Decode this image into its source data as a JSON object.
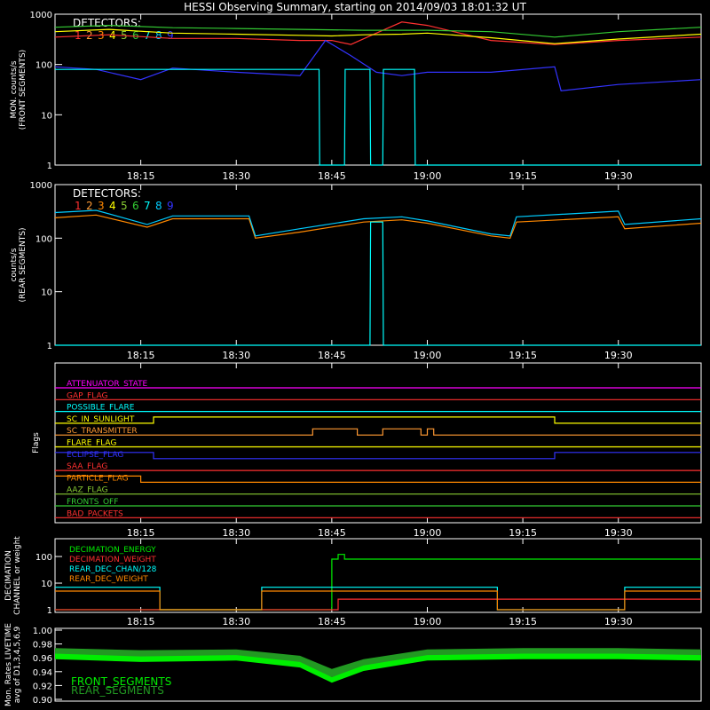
{
  "title": "HESSI Observing Summary, starting on 2014/09/03 18:01:32 UT",
  "time_ticks": [
    "18:15",
    "18:30",
    "18:45",
    "19:00",
    "19:15",
    "19:30"
  ],
  "colors": {
    "d1": "#ff3030",
    "d2": "#ff9933",
    "d3": "#ff8800",
    "d4": "#ffff00",
    "d5": "#88cc33",
    "d6": "#33cc33",
    "d7": "#00ffff",
    "d8": "#00ccff",
    "d9": "#3333ff",
    "magenta": "#ff00ff",
    "green": "#00ee00",
    "darkgreen": "#229922"
  },
  "chart_data": [
    {
      "type": "line",
      "title": "HESSI Observing Summary, starting on 2014/09/03 18:01:32 UT",
      "ylabel": [
        "MON. counts/s",
        "(FRONT SEGMENTS)"
      ],
      "legend_title": "DETECTORS:",
      "legend_labels": [
        "1",
        "2",
        "3",
        "4",
        "5",
        "6",
        "7",
        "8",
        "9"
      ],
      "y_scale": "log",
      "ylim": [
        1,
        1000
      ],
      "ytick_labels": [
        "1",
        "10",
        "100",
        "1000"
      ],
      "xlim": [
        "18:01:32",
        "19:43"
      ],
      "series": [
        {
          "color_key": "d1",
          "x": [
            "18:01:32",
            "18:10",
            "18:20",
            "18:30",
            "18:40",
            "18:45",
            "18:48",
            "18:52",
            "18:56",
            "19:00",
            "19:10",
            "19:20",
            "19:30",
            "19:43"
          ],
          "values": [
            350,
            390,
            330,
            330,
            300,
            300,
            250,
            420,
            700,
            600,
            300,
            250,
            300,
            350
          ]
        },
        {
          "color_key": "d4",
          "x": [
            "18:01:32",
            "18:10",
            "18:20",
            "18:30",
            "18:40",
            "18:45",
            "18:50",
            "18:56",
            "19:00",
            "19:10",
            "19:20",
            "19:30",
            "19:43"
          ],
          "values": [
            450,
            500,
            420,
            400,
            380,
            370,
            390,
            400,
            420,
            340,
            260,
            320,
            400
          ]
        },
        {
          "color_key": "d6",
          "x": [
            "18:01:32",
            "18:10",
            "18:20",
            "18:30",
            "18:40",
            "18:50",
            "19:00",
            "19:10",
            "19:20",
            "19:30",
            "19:43"
          ],
          "values": [
            550,
            600,
            540,
            520,
            500,
            480,
            480,
            450,
            350,
            450,
            550
          ]
        },
        {
          "color_key": "d9",
          "x": [
            "18:01:32",
            "18:08",
            "18:15",
            "18:20",
            "18:30",
            "18:40",
            "18:44",
            "18:48",
            "18:52",
            "18:56",
            "19:00",
            "19:10",
            "19:20",
            "19:21",
            "19:30",
            "19:43"
          ],
          "values": [
            90,
            80,
            50,
            85,
            70,
            60,
            300,
            150,
            70,
            60,
            70,
            70,
            90,
            30,
            40,
            50
          ]
        },
        {
          "color_key": "d7",
          "x": [
            "18:01:32",
            "18:40",
            "18:43",
            "18:43.1",
            "18:47",
            "18:47.1",
            "18:51",
            "18:51.1",
            "18:53",
            "18:53.1",
            "18:58",
            "18:58.1",
            "19:43"
          ],
          "values": [
            80,
            80,
            80,
            1,
            1,
            80,
            80,
            1,
            1,
            80,
            80,
            1,
            1
          ]
        }
      ]
    },
    {
      "type": "line",
      "ylabel": [
        "counts/s",
        "(REAR SEGMENTS)"
      ],
      "legend_title": "DETECTORS:",
      "legend_labels": [
        "1",
        "2",
        "3",
        "4",
        "5",
        "6",
        "7",
        "8",
        "9"
      ],
      "y_scale": "log",
      "ylim": [
        1,
        1000
      ],
      "ytick_labels": [
        "1",
        "10",
        "100",
        "1000"
      ],
      "xlim": [
        "18:01:32",
        "19:43"
      ],
      "series": [
        {
          "color_key": "d3",
          "x": [
            "18:01:32",
            "18:08",
            "18:16",
            "18:20",
            "18:32",
            "18:33",
            "18:40",
            "18:50",
            "18:56",
            "19:00",
            "19:10",
            "19:13",
            "19:14",
            "19:30",
            "19:31",
            "19:43"
          ],
          "values": [
            240,
            270,
            160,
            230,
            230,
            100,
            130,
            200,
            220,
            190,
            110,
            100,
            200,
            250,
            150,
            190
          ]
        },
        {
          "color_key": "d8",
          "x": [
            "18:01:32",
            "18:08",
            "18:16",
            "18:20",
            "18:32",
            "18:33",
            "18:40",
            "18:50",
            "18:56",
            "19:00",
            "19:10",
            "19:13",
            "19:14",
            "19:30",
            "19:31",
            "19:43"
          ],
          "values": [
            300,
            330,
            180,
            260,
            260,
            110,
            150,
            230,
            250,
            210,
            120,
            110,
            250,
            320,
            180,
            230
          ]
        },
        {
          "color_key": "d7",
          "x": [
            "18:01:32",
            "18:40",
            "18:41",
            "18:41.1",
            "18:51",
            "18:51.1",
            "18:53",
            "18:53.1",
            "18:58",
            "18:58.1",
            "19:43"
          ],
          "values": [
            1,
            1,
            1,
            1,
            1,
            200,
            200,
            1,
            1,
            1,
            1
          ]
        }
      ]
    },
    {
      "type": "step",
      "ylabel": "Flags",
      "flags": [
        {
          "name": "ATTENUATOR_STATE",
          "color_key": "magenta",
          "segments": [
            [
              "18:01:32",
              "19:43",
              0
            ]
          ]
        },
        {
          "name": "GAP_FLAG",
          "color_key": "d1",
          "segments": [
            [
              "18:01:32",
              "19:43",
              0
            ]
          ]
        },
        {
          "name": "POSSIBLE_FLARE",
          "color_key": "d7",
          "segments": [
            [
              "18:01:32",
              "19:43",
              0
            ]
          ]
        },
        {
          "name": "SC_IN_SUNLIGHT",
          "color_key": "d4",
          "segments": [
            [
              "18:01:32",
              "18:17",
              0
            ],
            [
              "18:17",
              "19:20",
              1
            ],
            [
              "19:20",
              "19:43",
              0
            ]
          ]
        },
        {
          "name": "SC_TRANSMITTER",
          "color_key": "d2",
          "segments": [
            [
              "18:01:32",
              "18:42",
              0
            ],
            [
              "18:42",
              "18:49",
              1
            ],
            [
              "18:49",
              "18:53",
              0
            ],
            [
              "18:53",
              "18:59",
              1
            ],
            [
              "18:59",
              "19:00",
              0
            ],
            [
              "19:00",
              "19:01",
              1
            ],
            [
              "19:01",
              "19:43",
              0
            ]
          ]
        },
        {
          "name": "FLARE_FLAG",
          "color_key": "d4",
          "segments": [
            [
              "18:01:32",
              "19:43",
              0
            ]
          ]
        },
        {
          "name": "ECLIPSE_FLAG",
          "color_key": "d9",
          "segments": [
            [
              "18:01:32",
              "18:17",
              1
            ],
            [
              "18:17",
              "19:20",
              0
            ],
            [
              "19:20",
              "19:43",
              1
            ]
          ]
        },
        {
          "name": "SAA_FLAG",
          "color_key": "d1",
          "segments": [
            [
              "18:01:32",
              "19:43",
              0
            ]
          ]
        },
        {
          "name": "PARTICLE_FLAG",
          "color_key": "d3",
          "segments": [
            [
              "18:01:32",
              "18:15",
              1
            ],
            [
              "18:15",
              "18:17",
              0
            ],
            [
              "18:17",
              "19:43",
              0
            ]
          ]
        },
        {
          "name": "AAZ_FLAG",
          "color_key": "d5",
          "segments": [
            [
              "18:01:32",
              "19:43",
              0
            ]
          ]
        },
        {
          "name": "FRONTS_OFF",
          "color_key": "d6",
          "segments": [
            [
              "18:01:32",
              "19:43",
              0
            ]
          ]
        },
        {
          "name": "BAD_PACKETS",
          "color_key": "d1",
          "segments": [
            [
              "18:01:32",
              "19:43",
              0
            ]
          ]
        }
      ]
    },
    {
      "type": "step",
      "ylabel": [
        "DECIMATION",
        "CHANNEL or weight"
      ],
      "y_scale": "log",
      "ylim": [
        1,
        400
      ],
      "ytick_labels": [
        "1",
        "10",
        "100"
      ],
      "legend": [
        "DECIMATION_ENERGY",
        "DECIMATION_WEIGHT",
        "REAR_DEC_CHAN/128",
        "REAR_DEC_WEIGHT"
      ],
      "series": [
        {
          "name": "DECIMATION_ENERGY",
          "color_key": "green",
          "x": [
            "18:01:32",
            "18:44",
            "18:45",
            "18:46",
            "18:47",
            "19:43"
          ],
          "values": [
            1,
            1,
            80,
            120,
            80,
            80
          ]
        },
        {
          "name": "DECIMATION_WEIGHT",
          "color_key": "d1",
          "x": [
            "18:01:32",
            "18:45",
            "18:46",
            "19:43"
          ],
          "values": [
            1,
            1,
            2.5,
            2.5
          ]
        },
        {
          "name": "REAR_DEC_CHAN/128",
          "color_key": "d7",
          "x": [
            "18:01:32",
            "18:17",
            "18:18",
            "18:33",
            "18:34",
            "19:10",
            "19:11",
            "19:30",
            "19:31",
            "19:43"
          ],
          "values": [
            7,
            7,
            1,
            1,
            7,
            7,
            1,
            1,
            7,
            7
          ]
        },
        {
          "name": "REAR_DEC_WEIGHT",
          "color_key": "d3",
          "x": [
            "18:01:32",
            "18:17",
            "18:18",
            "18:33",
            "18:34",
            "19:10",
            "19:11",
            "19:30",
            "19:31",
            "19:43"
          ],
          "values": [
            5,
            5,
            1,
            1,
            5,
            5,
            1,
            1,
            5,
            5
          ]
        }
      ]
    },
    {
      "type": "area",
      "ylabel": [
        "Mon. Rates LIVETIME",
        "avg of D1,3,4,5,6,9"
      ],
      "ylim": [
        0.9,
        1.0
      ],
      "ytick_labels": [
        "0.90",
        "0.92",
        "0.94",
        "0.96",
        "0.98",
        "1.00"
      ],
      "legend": [
        "FRONT_SEGMENTS",
        "REAR_SEGMENTS"
      ],
      "series": [
        {
          "name": "FRONT_SEGMENTS",
          "color_key": "green",
          "x": [
            "18:01:32",
            "18:15",
            "18:30",
            "18:40",
            "18:45",
            "18:50",
            "19:00",
            "19:15",
            "19:30",
            "19:43"
          ],
          "values": [
            0.962,
            0.958,
            0.96,
            0.95,
            0.928,
            0.945,
            0.96,
            0.962,
            0.962,
            0.96
          ]
        },
        {
          "name": "REAR_SEGMENTS",
          "color_key": "darkgreen",
          "x": [
            "18:01:32",
            "18:15",
            "18:30",
            "18:40",
            "18:45",
            "18:50",
            "19:00",
            "19:15",
            "19:30",
            "19:43"
          ],
          "values": [
            0.968,
            0.965,
            0.966,
            0.957,
            0.938,
            0.952,
            0.966,
            0.968,
            0.968,
            0.966
          ]
        }
      ]
    }
  ]
}
